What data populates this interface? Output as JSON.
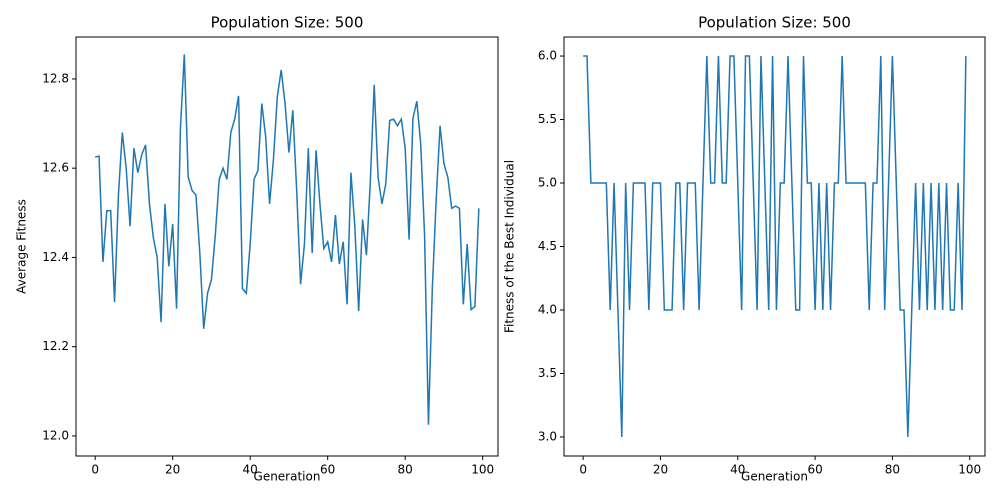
{
  "chart_data": [
    {
      "type": "line",
      "title": "Population Size: 500",
      "x_label": "Generation",
      "y_label": "Average Fitness",
      "x": [
        0,
        1,
        2,
        3,
        4,
        5,
        6,
        7,
        8,
        9,
        10,
        11,
        12,
        13,
        14,
        15,
        16,
        17,
        18,
        19,
        20,
        21,
        22,
        23,
        24,
        25,
        26,
        27,
        28,
        29,
        30,
        31,
        32,
        33,
        34,
        35,
        36,
        37,
        38,
        39,
        40,
        41,
        42,
        43,
        44,
        45,
        46,
        47,
        48,
        49,
        50,
        51,
        52,
        53,
        54,
        55,
        56,
        57,
        58,
        59,
        60,
        61,
        62,
        63,
        64,
        65,
        66,
        67,
        68,
        69,
        70,
        71,
        72,
        73,
        74,
        75,
        76,
        77,
        78,
        79,
        80,
        81,
        82,
        83,
        84,
        85,
        86,
        87,
        88,
        89,
        90,
        91,
        92,
        93,
        94,
        95,
        96,
        97,
        98,
        99
      ],
      "series": [
        {
          "name": "Average Fitness",
          "color": "#1f77b4",
          "values": [
            12.625,
            12.627,
            12.39,
            12.505,
            12.505,
            12.3,
            12.54,
            12.68,
            12.6,
            12.47,
            12.645,
            12.59,
            12.63,
            12.652,
            12.52,
            12.445,
            12.4,
            12.255,
            12.52,
            12.38,
            12.475,
            12.285,
            12.69,
            12.855,
            12.58,
            12.55,
            12.54,
            12.41,
            12.24,
            12.32,
            12.35,
            12.45,
            12.575,
            12.6,
            12.575,
            12.68,
            12.71,
            12.762,
            12.33,
            12.32,
            12.43,
            12.575,
            12.595,
            12.745,
            12.67,
            12.52,
            12.62,
            12.76,
            12.82,
            12.745,
            12.635,
            12.73,
            12.55,
            12.34,
            12.43,
            12.645,
            12.41,
            12.64,
            12.52,
            12.42,
            12.435,
            12.39,
            12.495,
            12.385,
            12.435,
            12.295,
            12.59,
            12.47,
            12.28,
            12.485,
            12.405,
            12.57,
            12.787,
            12.58,
            12.52,
            12.565,
            12.707,
            12.71,
            12.695,
            12.71,
            12.645,
            12.44,
            12.712,
            12.75,
            12.655,
            12.45,
            12.025,
            12.33,
            12.53,
            12.695,
            12.61,
            12.58,
            12.51,
            12.515,
            12.51,
            12.295,
            12.43,
            12.283,
            12.29,
            12.51
          ]
        }
      ],
      "xlim": [
        -4.95,
        103.95
      ],
      "xticks": [
        0,
        20,
        40,
        60,
        80,
        100
      ],
      "ylim": [
        11.955,
        12.894
      ],
      "yticks": [
        {
          "value": 12,
          "label": "12.0"
        },
        12.2,
        12.4,
        12.6,
        12.8
      ]
    },
    {
      "type": "line",
      "title": "Population Size: 500",
      "x_label": "Generation",
      "y_label": "Fitness of the Best Individual",
      "x": [
        0,
        1,
        2,
        3,
        4,
        5,
        6,
        7,
        8,
        9,
        10,
        11,
        12,
        13,
        14,
        15,
        16,
        17,
        18,
        19,
        20,
        21,
        22,
        23,
        24,
        25,
        26,
        27,
        28,
        29,
        30,
        31,
        32,
        33,
        34,
        35,
        36,
        37,
        38,
        39,
        40,
        41,
        42,
        43,
        44,
        45,
        46,
        47,
        48,
        49,
        50,
        51,
        52,
        53,
        54,
        55,
        56,
        57,
        58,
        59,
        60,
        61,
        62,
        63,
        64,
        65,
        66,
        67,
        68,
        69,
        70,
        71,
        72,
        73,
        74,
        75,
        76,
        77,
        78,
        79,
        80,
        81,
        82,
        83,
        84,
        85,
        86,
        87,
        88,
        89,
        90,
        91,
        92,
        93,
        94,
        95,
        96,
        97,
        98,
        99
      ],
      "series": [
        {
          "name": "Fitness of the Best Individual",
          "color": "#1f77b4",
          "values": [
            6,
            6,
            5,
            5,
            5,
            5,
            5,
            4,
            5,
            4,
            3,
            5,
            4,
            5,
            5,
            5,
            5,
            4,
            5,
            5,
            5,
            4,
            4,
            4,
            5,
            5,
            4,
            5,
            5,
            5,
            4,
            5,
            6,
            5,
            5,
            6,
            5,
            5,
            6,
            6,
            5,
            4,
            6,
            6,
            5,
            4,
            6,
            5,
            4,
            6,
            4,
            5,
            5,
            6,
            5,
            4,
            4,
            6,
            5,
            5,
            4,
            5,
            4,
            5,
            4,
            5,
            5,
            6,
            5,
            5,
            5,
            5,
            5,
            5,
            4,
            5,
            5,
            6,
            4,
            5,
            6,
            5,
            4,
            4,
            3,
            4,
            5,
            4,
            5,
            4,
            5,
            4,
            5,
            4,
            5,
            4,
            4,
            5,
            4,
            6
          ]
        }
      ],
      "xlim": [
        -4.95,
        103.95
      ],
      "xticks": [
        0,
        20,
        40,
        60,
        80,
        100
      ],
      "ylim": [
        2.85,
        6.15
      ],
      "yticks": [
        {
          "value": 3,
          "label": "3.0"
        },
        3.5,
        {
          "value": 4,
          "label": "4.0"
        },
        4.5,
        {
          "value": 5,
          "label": "5.0"
        },
        5.5,
        {
          "value": 6,
          "label": "6.0"
        }
      ]
    }
  ]
}
